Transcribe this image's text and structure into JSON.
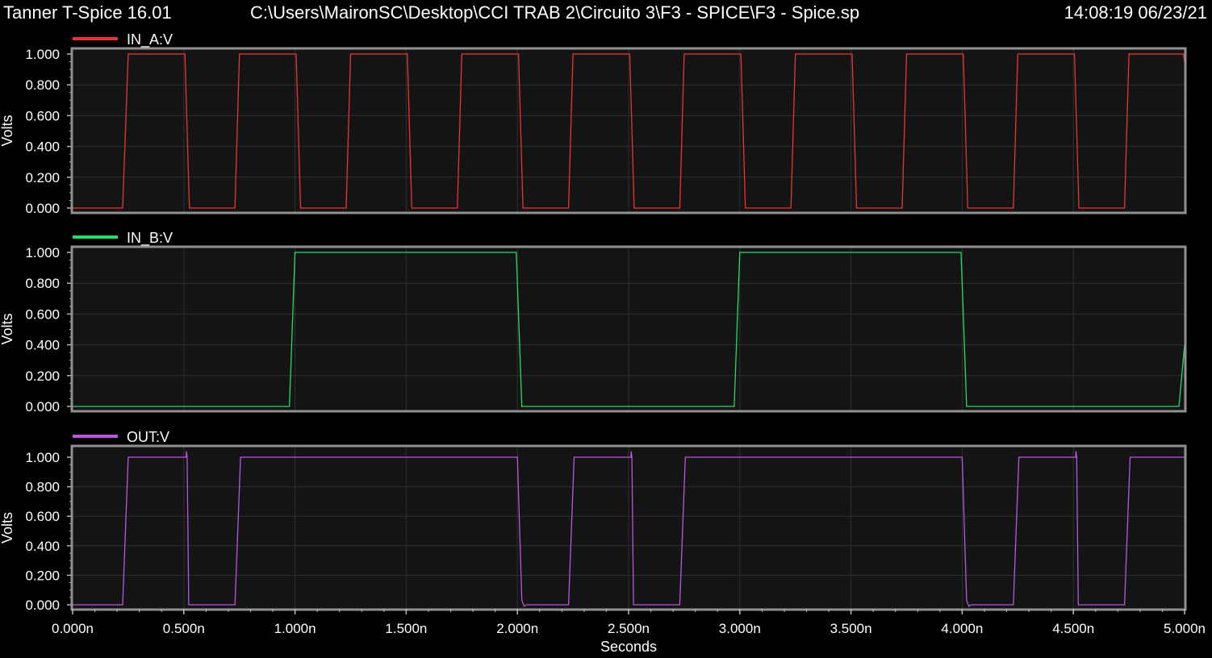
{
  "header": {
    "app": "Tanner T-Spice 16.01",
    "path": "C:\\Users\\MaironSC\\Desktop\\CCI TRAB 2\\Circuito 3\\F3 - SPICE\\F3 - Spice.sp",
    "timestamp": "14:08:19 06/23/21"
  },
  "colors": {
    "background": "#000000",
    "plot_bg": "#141414",
    "frame": "#909090",
    "grid": "#2e2e2e"
  },
  "chart_data": [
    {
      "type": "line",
      "series": [
        {
          "name": "IN_A:V",
          "color": "#ee3333",
          "x": [
            0,
            0.225,
            0.25,
            0.49,
            0.5,
            0.505,
            0.525,
            0.73,
            0.75,
            0.99,
            1.0,
            1.005,
            1.025,
            1.23,
            1.25,
            1.49,
            1.5,
            1.505,
            1.525,
            1.73,
            1.75,
            1.99,
            2.0,
            2.005,
            2.025,
            2.23,
            2.25,
            2.49,
            2.5,
            2.505,
            2.525,
            2.73,
            2.75,
            2.99,
            3.0,
            3.005,
            3.025,
            3.23,
            3.25,
            3.49,
            3.5,
            3.505,
            3.525,
            3.73,
            3.75,
            3.99,
            4.0,
            4.005,
            4.025,
            4.23,
            4.25,
            4.49,
            4.5,
            4.505,
            4.525,
            4.73,
            4.75,
            4.99,
            4.995,
            5.0
          ],
          "y": [
            0,
            0,
            1,
            1,
            1,
            1,
            0,
            0,
            1,
            1,
            1,
            1,
            0,
            0,
            1,
            1,
            1,
            1,
            0,
            0,
            1,
            1,
            1,
            1,
            0,
            0,
            1,
            1,
            1,
            1,
            0,
            0,
            1,
            1,
            1,
            1,
            0,
            0,
            1,
            1,
            1,
            1,
            0,
            0,
            1,
            1,
            1,
            1,
            0,
            0,
            1,
            1,
            1,
            1,
            0,
            0,
            1,
            1,
            1,
            0.95
          ]
        }
      ],
      "ylabel": "Volts",
      "ylim": [
        0,
        1.0
      ],
      "yticks": [
        "0.000",
        "0.200",
        "0.400",
        "0.600",
        "0.800",
        "1.000"
      ],
      "xlim": [
        0,
        5.0
      ]
    },
    {
      "type": "line",
      "series": [
        {
          "name": "IN_B:V",
          "color": "#22dd66",
          "x": [
            0,
            0.975,
            1.0,
            1.995,
            2.02,
            2.975,
            3.0,
            3.995,
            4.02,
            4.975,
            5.0
          ],
          "y": [
            0,
            0,
            1,
            1,
            0,
            0,
            1,
            1,
            0,
            0,
            0.4
          ]
        }
      ],
      "ylabel": "Volts",
      "ylim": [
        0,
        1.0
      ],
      "yticks": [
        "0.000",
        "0.200",
        "0.400",
        "0.600",
        "0.800",
        "1.000"
      ],
      "xlim": [
        0,
        5.0
      ]
    },
    {
      "type": "line",
      "series": [
        {
          "name": "OUT:V",
          "color": "#bb55dd",
          "x": [
            0,
            0.225,
            0.25,
            0.51,
            0.512,
            0.515,
            0.522,
            0.73,
            0.755,
            2.0,
            2.02,
            2.03,
            2.04,
            2.06,
            2.23,
            2.255,
            2.51,
            2.512,
            2.515,
            2.522,
            2.73,
            2.755,
            4.0,
            4.02,
            4.03,
            4.04,
            4.06,
            4.23,
            4.255,
            4.51,
            4.512,
            4.515,
            4.522,
            4.73,
            4.755,
            5.0
          ],
          "y": [
            0,
            0,
            1,
            1,
            1.04,
            1.0,
            0,
            0,
            1,
            1,
            0.03,
            -0.01,
            0,
            0,
            0,
            1,
            1,
            1.04,
            1.0,
            0,
            0,
            1,
            1,
            0.03,
            -0.01,
            0,
            0,
            0,
            1,
            1,
            1.04,
            1.0,
            0,
            0,
            1,
            1
          ]
        }
      ],
      "ylabel": "Volts",
      "ylim": [
        0,
        1.0
      ],
      "yticks": [
        "0.000",
        "0.200",
        "0.400",
        "0.600",
        "0.800",
        "1.000"
      ],
      "xlim": [
        0,
        5.0
      ]
    }
  ],
  "xaxis": {
    "label": "Seconds",
    "ticks": [
      "0.000n",
      "0.500n",
      "1.000n",
      "1.500n",
      "2.000n",
      "2.500n",
      "3.000n",
      "3.500n",
      "4.000n",
      "4.500n",
      "5.000n"
    ],
    "tick_values": [
      0,
      0.5,
      1.0,
      1.5,
      2.0,
      2.5,
      3.0,
      3.5,
      4.0,
      4.5,
      5.0
    ]
  }
}
